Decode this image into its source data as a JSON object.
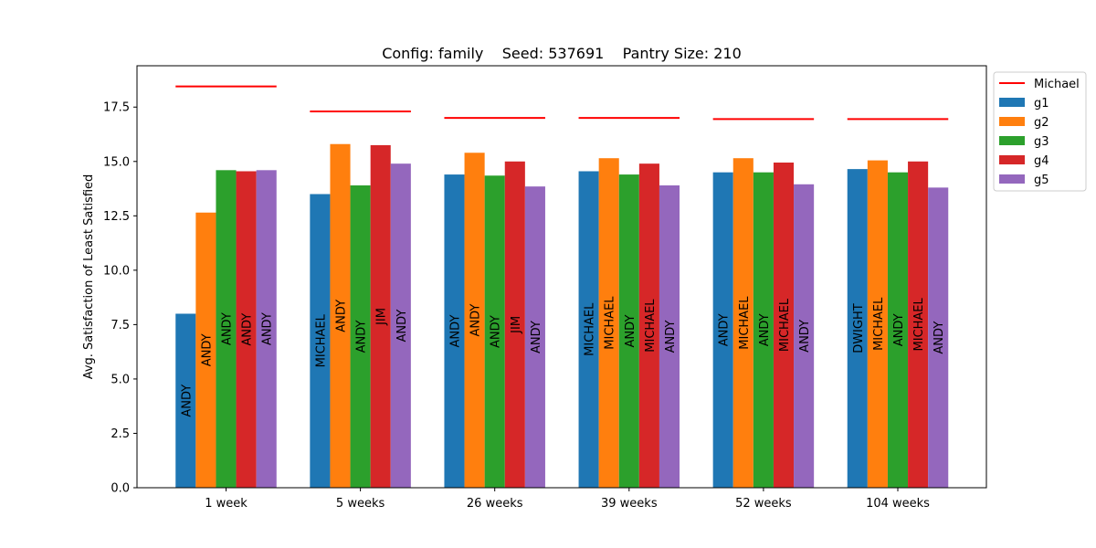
{
  "chart_data": {
    "type": "bar",
    "title": "Config: family    Seed: 537691    Pantry Size: 210",
    "xlabel": "",
    "ylabel": "Avg. Satisfaction of Least Satisfied",
    "ylim": [
      0,
      19.4
    ],
    "yticks": [
      "0.0",
      "2.5",
      "5.0",
      "7.5",
      "10.0",
      "12.5",
      "15.0",
      "17.5"
    ],
    "categories": [
      "1 week",
      "5 weeks",
      "26 weeks",
      "39 weeks",
      "52 weeks",
      "104 weeks"
    ],
    "series": [
      {
        "name": "g1",
        "color": "#1f77b4",
        "values": [
          8.0,
          13.5,
          14.4,
          14.55,
          14.5,
          14.65
        ],
        "labels": [
          "ANDY",
          "MICHAEL",
          "ANDY",
          "MICHAEL",
          "ANDY",
          "DWIGHT"
        ]
      },
      {
        "name": "g2",
        "color": "#ff7f0e",
        "values": [
          12.65,
          15.8,
          15.4,
          15.15,
          15.15,
          15.05
        ],
        "labels": [
          "ANDY",
          "ANDY",
          "ANDY",
          "MICHAEL",
          "MICHAEL",
          "MICHAEL"
        ]
      },
      {
        "name": "g3",
        "color": "#2ca02c",
        "values": [
          14.6,
          13.9,
          14.35,
          14.4,
          14.5,
          14.5
        ],
        "labels": [
          "ANDY",
          "ANDY",
          "ANDY",
          "ANDY",
          "ANDY",
          "ANDY"
        ]
      },
      {
        "name": "g4",
        "color": "#d62728",
        "values": [
          14.55,
          15.75,
          15.0,
          14.9,
          14.95,
          15.0
        ],
        "labels": [
          "ANDY",
          "JIM",
          "JIM",
          "MICHAEL",
          "MICHAEL",
          "MICHAEL"
        ]
      },
      {
        "name": "g5",
        "color": "#9467bd",
        "values": [
          14.6,
          14.9,
          13.85,
          13.9,
          13.95,
          13.8
        ],
        "labels": [
          "ANDY",
          "ANDY",
          "ANDY",
          "ANDY",
          "ANDY",
          "ANDY"
        ]
      }
    ],
    "reference_line": {
      "name": "Michael",
      "color": "#ff0000",
      "values": [
        18.45,
        17.3,
        17.0,
        17.0,
        16.95,
        16.95
      ]
    },
    "legend_position": "outside-top-right",
    "grid": false
  }
}
